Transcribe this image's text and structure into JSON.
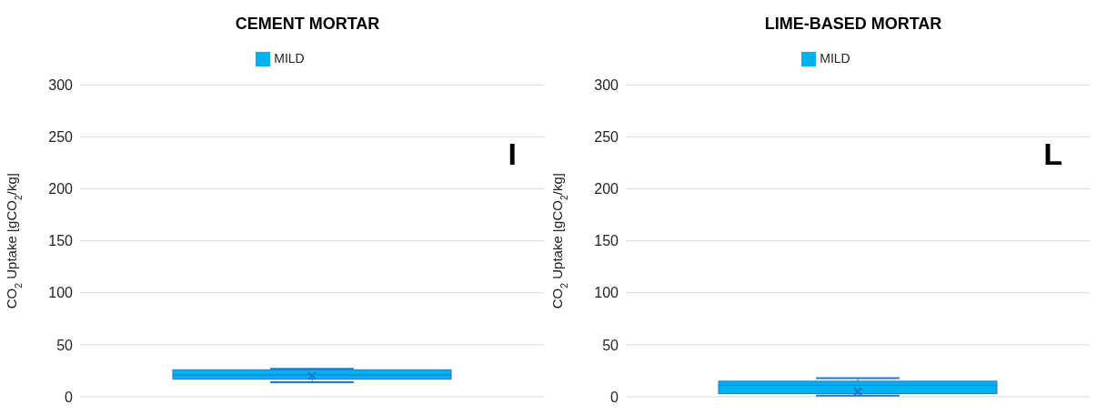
{
  "chart_data": [
    {
      "type": "box",
      "title": "CEMENT MORTAR",
      "categories": [
        null
      ],
      "series": [
        {
          "name": "MILD",
          "color": "#00b0f0",
          "boxes": [
            {
              "low": 14,
              "q1": 17,
              "median": 21,
              "q3": 26,
              "high": 27,
              "mean": 20
            }
          ]
        }
      ],
      "ylabel": "CO$_{2}$ Uptake [gCO$_{2}$/kg]",
      "ylim": [
        0,
        300
      ],
      "yticks": [
        0,
        50,
        100,
        150,
        200,
        250,
        300
      ],
      "grid": "y",
      "legend": "top",
      "annotations": [
        "I"
      ]
    },
    {
      "type": "box",
      "title": "LIME-BASED MORTAR",
      "categories": [
        null
      ],
      "series": [
        {
          "name": "MILD",
          "color": "#00b0f0",
          "boxes": [
            {
              "low": 1,
              "q1": 3,
              "median": 11,
              "q3": 15,
              "high": 18,
              "mean": 5
            }
          ]
        }
      ],
      "ylabel": "CO$_{2}$ Uptake [gCO$_{2}$/kg]",
      "ylim": [
        0,
        300
      ],
      "yticks": [
        0,
        50,
        100,
        150,
        200,
        250,
        300
      ],
      "grid": "y",
      "legend": "top",
      "annotations": [
        "L"
      ]
    }
  ]
}
